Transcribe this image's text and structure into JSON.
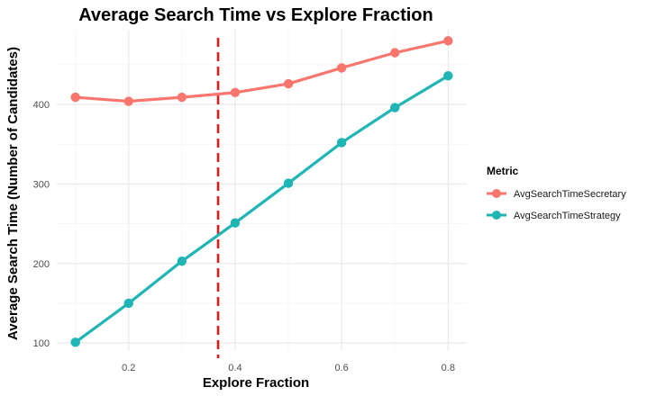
{
  "chart_data": {
    "type": "line",
    "title": "Average Search Time vs Explore Fraction",
    "xlabel": "Explore Fraction",
    "ylabel": "Average Search Time (Number of Candidates)",
    "x": [
      0.1,
      0.2,
      0.3,
      0.4,
      0.5,
      0.6,
      0.7,
      0.8
    ],
    "xlim": [
      0.065,
      0.835
    ],
    "ylim": [
      90,
      494
    ],
    "x_ticks": [
      0.2,
      0.4,
      0.6,
      0.8
    ],
    "x_tick_labels": [
      "0.2",
      "0.4",
      "0.6",
      "0.8"
    ],
    "y_ticks": [
      100,
      200,
      300,
      400
    ],
    "y_tick_labels": [
      "100",
      "200",
      "300",
      "400"
    ],
    "grid": true,
    "reference_line": {
      "x": 0.368,
      "color": "#e31a1c",
      "style": "dashed"
    },
    "legend": {
      "title": "Metric",
      "position": "right"
    },
    "series": [
      {
        "name": "AvgSearchTimeSecretary",
        "color": "#f8766d",
        "values": [
          409,
          404,
          409,
          415,
          426,
          446,
          465,
          480
        ]
      },
      {
        "name": "AvgSearchTimeStrategy",
        "color": "#20b5b5",
        "values": [
          101,
          150,
          203,
          251,
          301,
          352,
          396,
          436
        ]
      }
    ]
  }
}
